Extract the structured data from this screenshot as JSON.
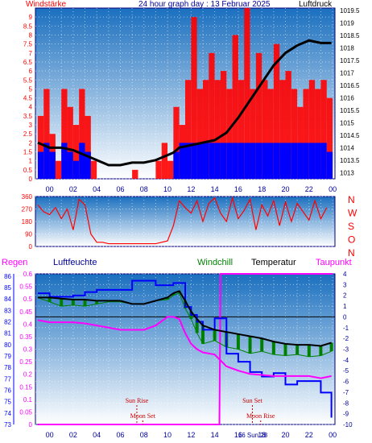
{
  "header": {
    "left_label": "Windstärke",
    "title": "24 hour graph day : 13 Februar 2025",
    "right_label": "Luftdruck"
  },
  "colors": {
    "wind": "#ff0000",
    "wind_gust": "#0000ff",
    "pressure": "#000000",
    "temperature": "#000000",
    "windchill": "#008000",
    "dewpoint": "#ff00ff",
    "humidity": "#0000ff",
    "rain": "#ff00ff",
    "sun": "#cc0000",
    "background_top": "#1a6fbf",
    "background_bottom": "#ffffff"
  },
  "chart_data": [
    {
      "type": "bar",
      "name": "wind_and_pressure",
      "x_tick_labels": [
        "00",
        "02",
        "04",
        "06",
        "08",
        "10",
        "12",
        "14",
        "16",
        "18",
        "20",
        "22",
        "00"
      ],
      "left_axis_label": "Windstärke",
      "right_axis_label": "Luftdruck",
      "left_ticks": [
        "0",
        "0.5",
        "1",
        "1.5",
        "2",
        "2.5",
        "3",
        "3.5",
        "4",
        "4.5",
        "5",
        "5.5",
        "6",
        "6.5",
        "7",
        "7.5",
        "8",
        "8.5",
        "9"
      ],
      "left_range": [
        0,
        9.5
      ],
      "right_ticks": [
        "1013",
        "1013.5",
        "1014",
        "1014.5",
        "1015",
        "1015.5",
        "1016",
        "1016.5",
        "1017",
        "1017.5",
        "1018",
        "1018.5",
        "1019",
        "1019.5"
      ],
      "right_range": [
        1012.75,
        1019.6
      ],
      "x_range_hours": [
        -1.2,
        24.2
      ],
      "wind_hours": [
        -1.0,
        -0.5,
        0.0,
        0.5,
        1.0,
        1.5,
        2.0,
        2.5,
        3.0,
        3.5,
        4.0,
        4.5,
        5.0,
        5.5,
        6.0,
        6.5,
        7.0,
        7.5,
        8.0,
        8.5,
        9.0,
        9.5,
        10.0,
        10.5,
        11.0,
        11.5,
        12.0,
        12.5,
        13.0,
        13.5,
        14.0,
        14.5,
        15.0,
        15.5,
        16.0,
        16.5,
        17.0,
        17.5,
        18.0,
        18.5,
        19.0,
        19.5,
        20.0,
        20.5,
        21.0,
        21.5,
        22.0,
        22.5,
        23.0,
        23.5
      ],
      "wind_values": [
        3.5,
        5.0,
        2.5,
        1.0,
        5.0,
        4.0,
        3.0,
        5.0,
        3.5,
        1.0,
        0,
        0,
        0,
        0,
        0,
        0,
        0.5,
        0,
        0,
        0,
        1.0,
        2.0,
        1.0,
        4.0,
        3.0,
        5.5,
        9.0,
        5.0,
        5.5,
        7.0,
        5.5,
        6.0,
        5.0,
        8.0,
        5.5,
        9.5,
        5.0,
        7.0,
        5.5,
        5.0,
        7.5,
        5.5,
        6.0,
        5.0,
        4.0,
        5.0,
        5.5,
        5.0,
        5.5,
        4.5
      ],
      "gust_values": [
        1.5,
        2.0,
        1.5,
        0,
        2.0,
        1.5,
        1.0,
        2.0,
        1.5,
        0,
        0,
        0,
        0,
        0,
        0,
        0,
        0,
        0,
        0,
        0,
        0,
        0,
        0,
        1.5,
        2.0,
        2.0,
        2.0,
        2.0,
        2.0,
        2.0,
        2.0,
        2.0,
        2.0,
        2.0,
        2.0,
        2.0,
        2.0,
        2.0,
        2.0,
        2.0,
        2.0,
        2.0,
        2.0,
        2.0,
        2.0,
        2.0,
        2.0,
        2.0,
        2.0,
        1.5
      ],
      "pressure_hours": [
        -1.0,
        0,
        1,
        2,
        3,
        4,
        5,
        6,
        7,
        8,
        9,
        10,
        10.5,
        11,
        12,
        13,
        14,
        15,
        16,
        17,
        18,
        19,
        20,
        21,
        22,
        23,
        23.9
      ],
      "pressure_values": [
        1014.2,
        1014.0,
        1014.0,
        1013.9,
        1013.7,
        1013.5,
        1013.3,
        1013.3,
        1013.4,
        1013.4,
        1013.5,
        1013.7,
        1013.8,
        1014.0,
        1014.1,
        1014.2,
        1014.3,
        1014.6,
        1015.2,
        1015.9,
        1016.6,
        1017.3,
        1017.8,
        1018.1,
        1018.3,
        1018.2,
        1018.2
      ]
    },
    {
      "type": "bar",
      "name": "wind_direction",
      "x_tick_labels": [
        "00",
        "02",
        "04",
        "06",
        "08",
        "10",
        "12",
        "14",
        "16",
        "18",
        "20",
        "22",
        "00"
      ],
      "left_ticks": [
        "0",
        "90",
        "180",
        "270",
        "360"
      ],
      "right_labels": [
        "N",
        "W",
        "S",
        "O",
        "N"
      ],
      "y_range": [
        0,
        360
      ],
      "hours": [
        -1.0,
        -0.5,
        0.0,
        0.5,
        1.0,
        1.5,
        2.0,
        2.5,
        3.0,
        3.5,
        4.0,
        4.5,
        5.0,
        5.5,
        6.0,
        6.5,
        7.0,
        7.5,
        8.0,
        8.5,
        9.0,
        9.5,
        10.0,
        10.5,
        11.0,
        11.5,
        12.0,
        12.5,
        13.0,
        13.5,
        14.0,
        14.5,
        15.0,
        15.5,
        16.0,
        16.5,
        17.0,
        17.5,
        18.0,
        18.5,
        19.0,
        19.5,
        20.0,
        20.5,
        21.0,
        21.5,
        22.0,
        22.5,
        23.0,
        23.5
      ],
      "values": [
        300,
        250,
        230,
        280,
        200,
        270,
        120,
        340,
        300,
        90,
        30,
        30,
        20,
        20,
        20,
        20,
        20,
        20,
        20,
        20,
        20,
        30,
        40,
        150,
        330,
        280,
        240,
        330,
        180,
        310,
        350,
        240,
        180,
        350,
        200,
        260,
        340,
        120,
        300,
        220,
        330,
        150,
        320,
        180,
        310,
        250,
        190,
        330,
        200,
        280
      ]
    },
    {
      "type": "line",
      "name": "temperature_humidity",
      "x_tick_labels": [
        "00",
        "02",
        "04",
        "06",
        "08",
        "10",
        "12",
        "14",
        "16",
        "18",
        "20",
        "22",
        "00"
      ],
      "legend": [
        "Regen",
        "Luftfeuchte",
        "Windchill",
        "Temperatur",
        "Taupunkt"
      ],
      "humidity_ticks": [
        "73",
        "74",
        "75",
        "76",
        "77",
        "78",
        "79",
        "80",
        "81",
        "82",
        "83",
        "84",
        "85",
        "86"
      ],
      "humidity_range": [
        73,
        86.2
      ],
      "rain_ticks": [
        "0",
        "0.05",
        "0.1",
        "0.15",
        "0.2",
        "0.25",
        "0.3",
        "0.35",
        "0.4",
        "0.45",
        "0.5",
        "0.55",
        "0.6"
      ],
      "rain_range": [
        0,
        0.6
      ],
      "temp_ticks": [
        "-10",
        "-9",
        "-8",
        "-7",
        "-6",
        "-5",
        "-4",
        "-3",
        "-2",
        "-1",
        "0",
        "1",
        "2",
        "3",
        "4"
      ],
      "temp_range": [
        -10,
        4
      ],
      "hours": [
        -1.0,
        0,
        1,
        2,
        3,
        4,
        5,
        6,
        7,
        8,
        9,
        10,
        10.5,
        11,
        11.5,
        12,
        12.5,
        13,
        14,
        15,
        16,
        17,
        18,
        19,
        20,
        21,
        22,
        23,
        23.9
      ],
      "temperature": [
        1.8,
        1.8,
        1.7,
        1.6,
        1.6,
        1.5,
        1.5,
        1.5,
        1.2,
        1.2,
        1.5,
        1.8,
        2.2,
        2.4,
        1.5,
        0.5,
        -0.2,
        -0.8,
        -1.2,
        -1.4,
        -1.6,
        -1.8,
        -2.0,
        -2.3,
        -2.5,
        -2.6,
        -2.6,
        -2.7,
        -2.4
      ],
      "windchill": [
        1.8,
        1.4,
        1.0,
        1.1,
        1.0,
        1.2,
        1.4,
        1.4,
        1.2,
        1.2,
        1.5,
        1.6,
        2.0,
        2.2,
        0.8,
        -0.2,
        -1.5,
        -2.5,
        -2.2,
        -2.8,
        -3.0,
        -3.4,
        -3.2,
        -3.5,
        -3.6,
        -3.5,
        -3.7,
        -3.6,
        -3.2
      ],
      "dewpoint": [
        -0.3,
        -0.5,
        -0.5,
        -0.5,
        -0.6,
        -0.8,
        -1.0,
        -1.2,
        -1.2,
        -1.2,
        -0.8,
        0.0,
        0.0,
        -0.2,
        -1.5,
        -2.5,
        -3.0,
        -3.3,
        -3.5,
        -4.6,
        -5.0,
        -5.3,
        -5.4,
        -5.5,
        -5.5,
        -5.5,
        -5.5,
        -5.7,
        -5.5
      ],
      "humidity": [
        84.5,
        84.2,
        84.2,
        84.3,
        84.6,
        84.8,
        84.8,
        84.8,
        85.6,
        85.6,
        85.2,
        85.2,
        85.4,
        85.4,
        83.3,
        82.6,
        82.0,
        81.3,
        82.3,
        79.2,
        78.5,
        77.6,
        77.2,
        77.5,
        76.5,
        76.8,
        76.8,
        75.8,
        73.6
      ],
      "rain_hours": [
        -1.0,
        14.4,
        14.5,
        24.0
      ],
      "rain_values": [
        0,
        0,
        0.6,
        0.6
      ],
      "annotations": [
        {
          "label": "Sun Rise",
          "hour": 7.4
        },
        {
          "label": "Moon Set",
          "hour": 7.9
        },
        {
          "label": "Sun Set",
          "hour": 17.2
        },
        {
          "label": "Moon Rise",
          "hour": 17.9
        }
      ],
      "time_note": "16 Sun 28"
    }
  ]
}
